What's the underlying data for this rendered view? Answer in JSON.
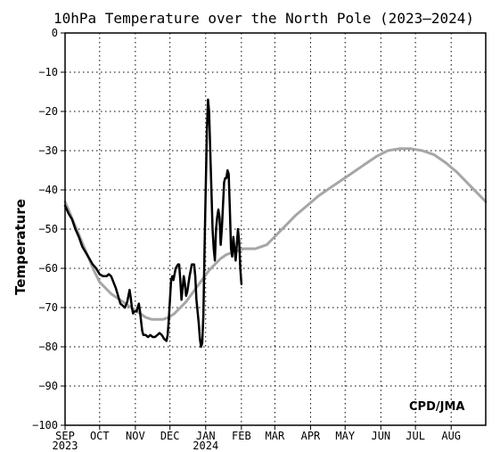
{
  "chart_data": {
    "type": "line",
    "title": "10hPa Temperature over the North Pole (2023—2024)",
    "xlabel": "",
    "ylabel": "Temperature",
    "credit": "CPD/JMA",
    "ylim": [
      -100,
      0
    ],
    "yticks": [
      0,
      -10,
      -20,
      -30,
      -40,
      -50,
      -60,
      -70,
      -80,
      -90,
      -100
    ],
    "xlim": [
      0,
      365
    ],
    "xticks": [
      {
        "day": 0,
        "label": "SEP",
        "sublabel": "2023"
      },
      {
        "day": 30,
        "label": "OCT",
        "sublabel": ""
      },
      {
        "day": 61,
        "label": "NOV",
        "sublabel": ""
      },
      {
        "day": 91,
        "label": "DEC",
        "sublabel": ""
      },
      {
        "day": 122,
        "label": "JAN",
        "sublabel": "2024"
      },
      {
        "day": 153,
        "label": "FEB",
        "sublabel": ""
      },
      {
        "day": 182,
        "label": "MAR",
        "sublabel": ""
      },
      {
        "day": 213,
        "label": "APR",
        "sublabel": ""
      },
      {
        "day": 243,
        "label": "MAY",
        "sublabel": ""
      },
      {
        "day": 274,
        "label": "JUN",
        "sublabel": ""
      },
      {
        "day": 304,
        "label": "JUL",
        "sublabel": ""
      },
      {
        "day": 335,
        "label": "AUG",
        "sublabel": ""
      }
    ],
    "grid": true,
    "series": [
      {
        "color": "#a6a6a6",
        "points": [
          [
            0,
            -43
          ],
          [
            5,
            -46.5
          ],
          [
            10,
            -50
          ],
          [
            15,
            -53.5
          ],
          [
            20,
            -57
          ],
          [
            25,
            -60.5
          ],
          [
            30,
            -63.5
          ],
          [
            35,
            -65
          ],
          [
            40,
            -66.5
          ],
          [
            45,
            -67.5
          ],
          [
            50,
            -68.5
          ],
          [
            55,
            -69.5
          ],
          [
            60,
            -70.5
          ],
          [
            65,
            -71.5
          ],
          [
            70,
            -72.5
          ],
          [
            75,
            -73
          ],
          [
            80,
            -73
          ],
          [
            85,
            -73
          ],
          [
            90,
            -72.5
          ],
          [
            95,
            -71.5
          ],
          [
            100,
            -70
          ],
          [
            105,
            -68.5
          ],
          [
            110,
            -66.5
          ],
          [
            115,
            -64.5
          ],
          [
            120,
            -62.5
          ],
          [
            125,
            -60.5
          ],
          [
            130,
            -59
          ],
          [
            135,
            -57.5
          ],
          [
            140,
            -56.5
          ],
          [
            145,
            -56
          ],
          [
            150,
            -55.5
          ],
          [
            155,
            -55
          ],
          [
            160,
            -55
          ],
          [
            165,
            -55
          ],
          [
            170,
            -54.5
          ],
          [
            175,
            -54
          ],
          [
            180,
            -52.5
          ],
          [
            185,
            -51
          ],
          [
            190,
            -49.5
          ],
          [
            195,
            -48
          ],
          [
            200,
            -46.5
          ],
          [
            210,
            -44
          ],
          [
            220,
            -41.5
          ],
          [
            230,
            -39.5
          ],
          [
            240,
            -37.5
          ],
          [
            250,
            -35.5
          ],
          [
            260,
            -33.5
          ],
          [
            270,
            -31.5
          ],
          [
            280,
            -30
          ],
          [
            290,
            -29.5
          ],
          [
            300,
            -29.5
          ],
          [
            310,
            -30
          ],
          [
            320,
            -31
          ],
          [
            330,
            -33
          ],
          [
            340,
            -35.5
          ],
          [
            350,
            -38.5
          ],
          [
            360,
            -41.5
          ],
          [
            365,
            -43
          ]
        ]
      },
      {
        "color": "#000000",
        "points": [
          [
            0,
            -44
          ],
          [
            3,
            -46
          ],
          [
            6,
            -47.5
          ],
          [
            9,
            -50
          ],
          [
            12,
            -52
          ],
          [
            15,
            -54.5
          ],
          [
            18,
            -56
          ],
          [
            21,
            -57.5
          ],
          [
            24,
            -59
          ],
          [
            27,
            -60
          ],
          [
            30,
            -61.5
          ],
          [
            33,
            -62
          ],
          [
            36,
            -62
          ],
          [
            38,
            -61.5
          ],
          [
            40,
            -62
          ],
          [
            42,
            -63.5
          ],
          [
            44,
            -65
          ],
          [
            46,
            -67
          ],
          [
            48,
            -69
          ],
          [
            50,
            -69.5
          ],
          [
            52,
            -70
          ],
          [
            54,
            -68.5
          ],
          [
            55,
            -67
          ],
          [
            56,
            -65.5
          ],
          [
            57,
            -67.5
          ],
          [
            58,
            -70
          ],
          [
            59,
            -71.5
          ],
          [
            60,
            -71
          ],
          [
            62,
            -71
          ],
          [
            63,
            -70
          ],
          [
            64,
            -69
          ],
          [
            65,
            -71
          ],
          [
            66,
            -73.5
          ],
          [
            67,
            -76
          ],
          [
            68,
            -77
          ],
          [
            70,
            -77
          ],
          [
            72,
            -77.5
          ],
          [
            74,
            -77
          ],
          [
            76,
            -77.5
          ],
          [
            78,
            -77.5
          ],
          [
            80,
            -77
          ],
          [
            82,
            -76.5
          ],
          [
            84,
            -77
          ],
          [
            86,
            -78
          ],
          [
            88,
            -78.5
          ],
          [
            89,
            -77
          ],
          [
            90,
            -73
          ],
          [
            91,
            -68
          ],
          [
            92,
            -63
          ],
          [
            93,
            -62
          ],
          [
            94,
            -63
          ],
          [
            96,
            -60
          ],
          [
            98,
            -59
          ],
          [
            99,
            -59
          ],
          [
            100,
            -63
          ],
          [
            101,
            -68
          ],
          [
            102,
            -65
          ],
          [
            103,
            -62
          ],
          [
            104,
            -64
          ],
          [
            105,
            -67
          ],
          [
            106,
            -66
          ],
          [
            108,
            -62
          ],
          [
            110,
            -59
          ],
          [
            112,
            -59
          ],
          [
            113,
            -62
          ],
          [
            114,
            -68
          ],
          [
            116,
            -74
          ],
          [
            117,
            -78
          ],
          [
            118,
            -80
          ],
          [
            119,
            -79
          ],
          [
            120,
            -72
          ],
          [
            121,
            -55
          ],
          [
            122,
            -40
          ],
          [
            123,
            -25
          ],
          [
            124,
            -17
          ],
          [
            125,
            -20
          ],
          [
            126,
            -30
          ],
          [
            127,
            -40
          ],
          [
            128,
            -50
          ],
          [
            129,
            -55
          ],
          [
            130,
            -58
          ],
          [
            131,
            -50
          ],
          [
            132,
            -47
          ],
          [
            133,
            -45
          ],
          [
            134,
            -47
          ],
          [
            135,
            -54
          ],
          [
            136,
            -50
          ],
          [
            137,
            -44
          ],
          [
            138,
            -38
          ],
          [
            139,
            -37
          ],
          [
            140,
            -37
          ],
          [
            141,
            -35
          ],
          [
            142,
            -36
          ],
          [
            143,
            -45
          ],
          [
            144,
            -55
          ],
          [
            145,
            -57
          ],
          [
            146,
            -52
          ],
          [
            147,
            -55
          ],
          [
            148,
            -58
          ],
          [
            149,
            -54
          ],
          [
            150,
            -50
          ],
          [
            151,
            -53
          ],
          [
            152,
            -60
          ],
          [
            153,
            -64
          ]
        ]
      }
    ]
  }
}
